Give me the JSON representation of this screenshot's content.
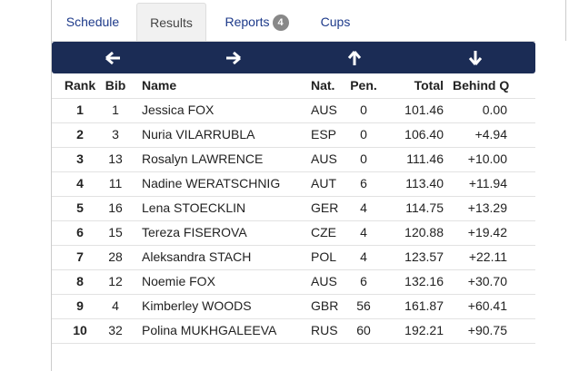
{
  "tabs": [
    {
      "label": "Schedule"
    },
    {
      "label": "Results"
    },
    {
      "label": "Reports",
      "badge": "4"
    },
    {
      "label": "Cups"
    }
  ],
  "table": {
    "header": [
      "Rank",
      "Bib",
      "Name",
      "Nat.",
      "Pen.",
      "Total",
      "Behind Q"
    ],
    "rows": [
      [
        "1",
        "1",
        "Jessica FOX",
        "AUS",
        "0",
        "101.46",
        "0.00"
      ],
      [
        "2",
        "3",
        "Nuria VILARRUBLA",
        "ESP",
        "0",
        "106.40",
        "+4.94"
      ],
      [
        "3",
        "13",
        "Rosalyn LAWRENCE",
        "AUS",
        "0",
        "111.46",
        "+10.00"
      ],
      [
        "4",
        "11",
        "Nadine WERATSCHNIG",
        "AUT",
        "6",
        "113.40",
        "+11.94"
      ],
      [
        "5",
        "16",
        "Lena STOECKLIN",
        "GER",
        "4",
        "114.75",
        "+13.29"
      ],
      [
        "6",
        "15",
        "Tereza FISEROVA",
        "CZE",
        "4",
        "120.88",
        "+19.42"
      ],
      [
        "7",
        "28",
        "Aleksandra STACH",
        "POL",
        "4",
        "123.57",
        "+22.11"
      ],
      [
        "8",
        "12",
        "Noemie FOX",
        "AUS",
        "6",
        "132.16",
        "+30.70"
      ],
      [
        "9",
        "4",
        "Kimberley WOODS",
        "GBR",
        "56",
        "161.87",
        "+60.41"
      ],
      [
        "10",
        "32",
        "Polina MUKHGALEEVA",
        "RUS",
        "60",
        "192.21",
        "+90.75"
      ]
    ]
  }
}
